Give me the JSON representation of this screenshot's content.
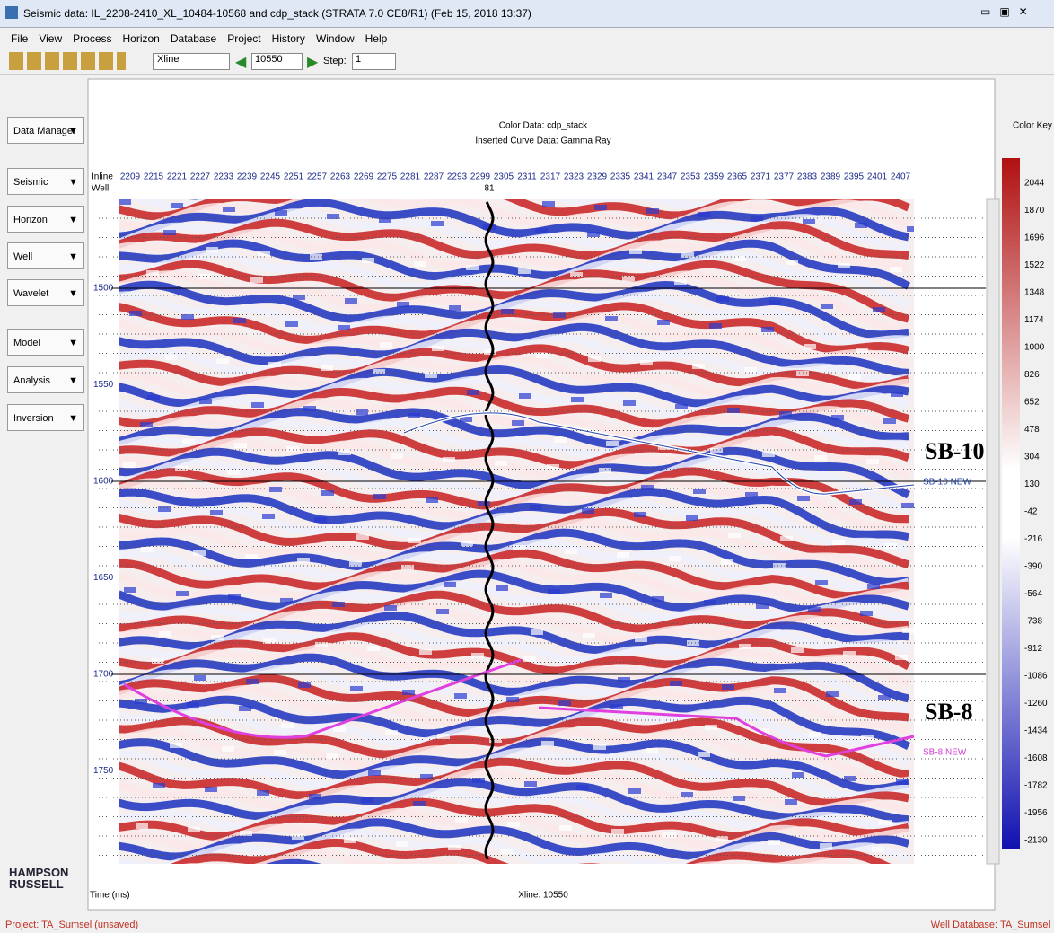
{
  "window": {
    "title": "Seismic data: IL_2208-2410_XL_10484-10568 and cdp_stack (STRATA 7.0  CE8/R1)  (Feb 15, 2018  13:37)"
  },
  "menu": [
    "File",
    "View",
    "Process",
    "Horizon",
    "Database",
    "Project",
    "History",
    "Window",
    "Help"
  ],
  "toolbar": {
    "mode": "Xline",
    "number": "10550",
    "step_label": "Step:",
    "step": "1"
  },
  "side_panel": [
    "Data Manager",
    "Seismic",
    "Horizon",
    "Well",
    "Wavelet",
    "Model",
    "Analysis",
    "Inversion"
  ],
  "plot": {
    "header": [
      "Color Data: cdp_stack",
      "Inserted Curve Data:  Gamma Ray"
    ],
    "inline_label": "Inline",
    "well_label": "Well",
    "well_number": "81",
    "inlines": [
      "2209",
      "2215",
      "2221",
      "2227",
      "2233",
      "2239",
      "2245",
      "2251",
      "2257",
      "2263",
      "2269",
      "2275",
      "2281",
      "2287",
      "2293",
      "2299",
      "2305",
      "2311",
      "2317",
      "2323",
      "2329",
      "2335",
      "2341",
      "2347",
      "2353",
      "2359",
      "2365",
      "2371",
      "2377",
      "2383",
      "2389",
      "2395",
      "2401",
      "2407"
    ],
    "times": [
      "1500",
      "1550",
      "1600",
      "1650",
      "1700",
      "1750"
    ],
    "annotations": [
      {
        "big": "SB-10",
        "small": "SB-10 NEW"
      },
      {
        "big": "SB-8",
        "small": "SB-8 NEW"
      }
    ],
    "time_axis": "Time (ms)",
    "xline": "Xline: 10550"
  },
  "color_key": {
    "title": "Color Key",
    "labels": [
      "2044",
      "1870",
      "1696",
      "1522",
      "1348",
      "1174",
      "1000",
      "826",
      "652",
      "478",
      "304",
      "130",
      "-42",
      "-216",
      "-390",
      "-564",
      "-738",
      "-912",
      "-1086",
      "-1260",
      "-1434",
      "-1608",
      "-1782",
      "-1956",
      "-2130"
    ]
  },
  "logo": [
    "HAMPSON",
    "RUSSELL"
  ],
  "status": {
    "left": "Project: TA_Sumsel (unsaved)",
    "right": "Well Database: TA_Sumsel"
  }
}
